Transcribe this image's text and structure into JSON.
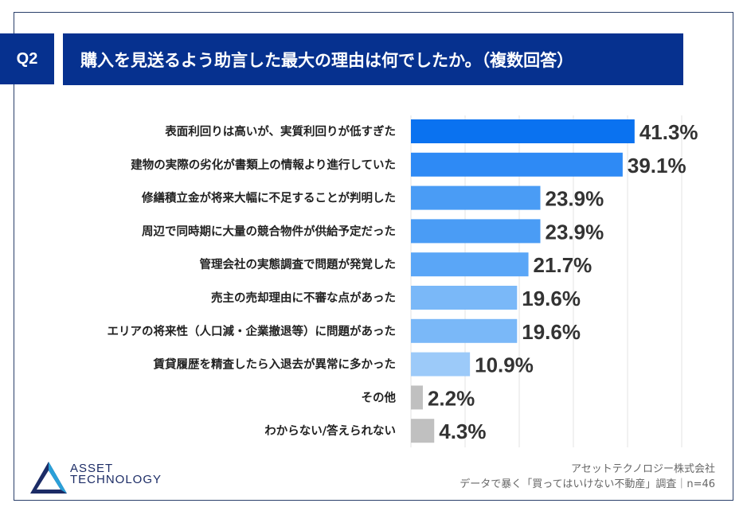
{
  "header": {
    "question_number": "Q2",
    "title": "購入を見送るよう助言した最大の理由は何でしたか。（複数回答）"
  },
  "chart_data": {
    "type": "bar",
    "orientation": "horizontal",
    "categories": [
      "表面利回りは高いが、実質利回りが低すぎた",
      "建物の実際の劣化が書類上の情報より進行していた",
      "修繕積立金が将来大幅に不足することが判明した",
      "周辺で同時期に大量の競合物件が供給予定だった",
      "管理会社の実態調査で問題が発覚した",
      "売主の売却理由に不審な点があった",
      "エリアの将来性（人口減・企業撤退等）に問題があった",
      "賃貸履歴を精査したら入退去が異常に多かった",
      "その他",
      "わからない/答えられない"
    ],
    "values": [
      41.3,
      39.1,
      23.9,
      23.9,
      21.7,
      19.6,
      19.6,
      10.9,
      2.2,
      4.3
    ],
    "value_labels": [
      "41.3%",
      "39.1%",
      "23.9%",
      "23.9%",
      "21.7%",
      "19.6%",
      "19.6%",
      "10.9%",
      "2.2%",
      "4.3%"
    ],
    "colors": [
      "#0a72f0",
      "#2e8af5",
      "#4a9cf5",
      "#4a9cf5",
      "#5aa6f7",
      "#7ab8f8",
      "#7ab8f8",
      "#9ccaf9",
      "#c0c0c0",
      "#c0c0c0"
    ],
    "xlim": [
      0,
      50
    ],
    "grid": true
  },
  "footer": {
    "logo_line1": "ASSET",
    "logo_line2": "TECHNOLOGY",
    "company": "アセットテクノロジー株式会社",
    "survey": "データで暴く「買ってはいけない不動産」調査｜n=46"
  }
}
